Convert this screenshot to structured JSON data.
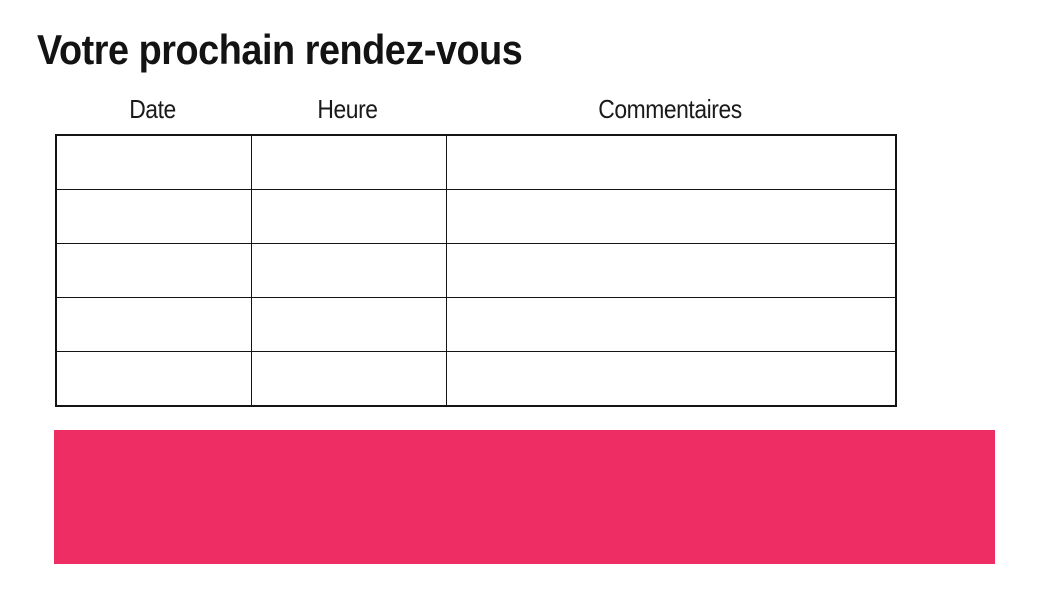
{
  "title": "Votre prochain rendez-vous",
  "table": {
    "columns": [
      "Date",
      "Heure",
      "Commentaires"
    ],
    "rows": [
      [
        "",
        "",
        ""
      ],
      [
        "",
        "",
        ""
      ],
      [
        "",
        "",
        ""
      ],
      [
        "",
        "",
        ""
      ],
      [
        "",
        "",
        ""
      ]
    ]
  },
  "banner": {
    "color": "#EE2D64"
  },
  "colors": {
    "table_border": "#141414",
    "text": "#131313",
    "background": "#FFFFFF"
  }
}
